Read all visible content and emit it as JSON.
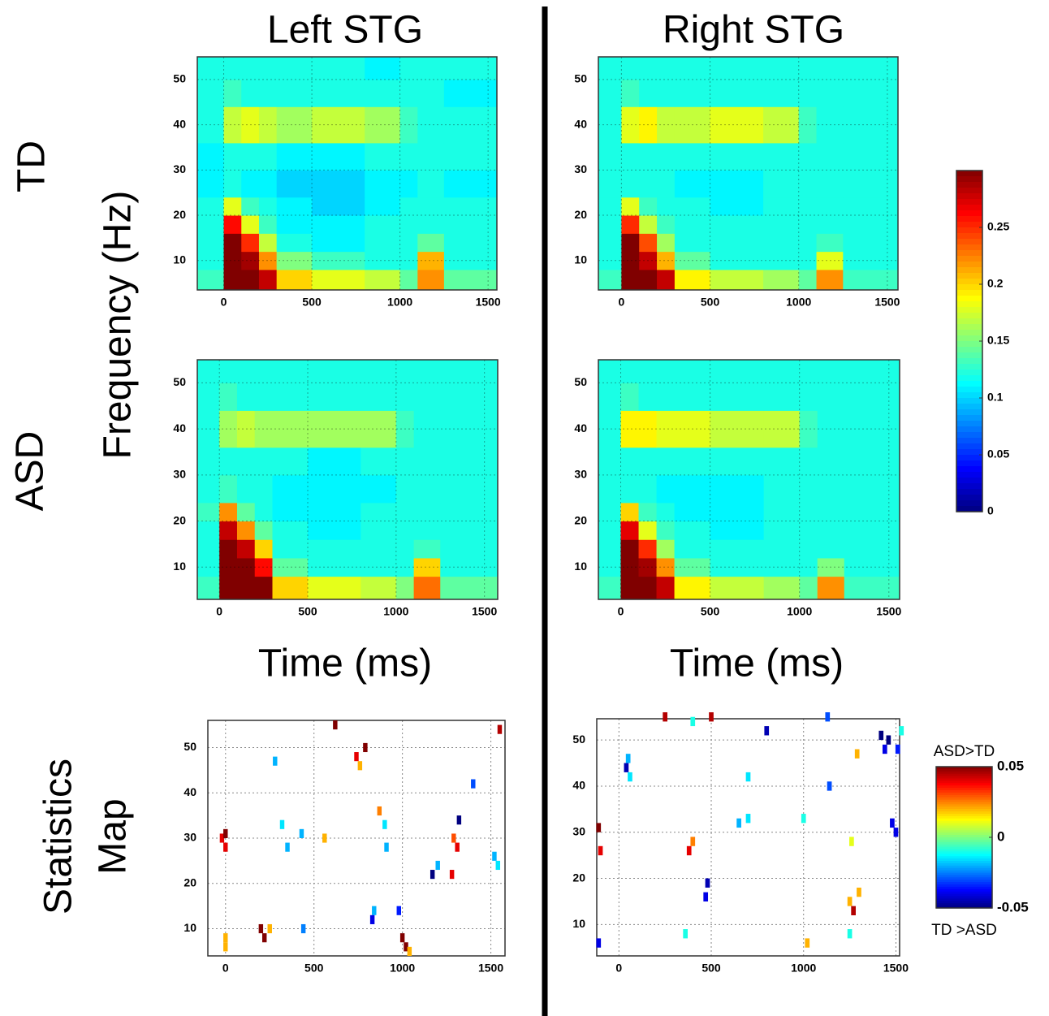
{
  "figure": {
    "column_titles": [
      "Left STG",
      "Right STG"
    ],
    "row_labels": [
      "TD",
      "ASD"
    ],
    "y_label": "Frequency (Hz)",
    "x_label": "Time (ms)",
    "stats_label": [
      "Statistics",
      "Map"
    ]
  },
  "chart_data": [
    {
      "type": "heatmap",
      "xlim": [
        -150,
        1550
      ],
      "ylim": [
        3.5,
        55
      ],
      "xticks": [
        0,
        500,
        1000,
        1500
      ],
      "yticks": [
        10,
        20,
        30,
        40,
        50
      ],
      "grid": true,
      "xbins": [
        -150,
        0,
        100,
        200,
        300,
        500,
        800,
        1000,
        1100,
        1250,
        1550
      ],
      "ybins": [
        3.5,
        8,
        12,
        16,
        20,
        24,
        30,
        36,
        44,
        50,
        55
      ],
      "z": [
        [
          0.13,
          0.3,
          0.3,
          0.28,
          0.2,
          0.18,
          0.17,
          0.14,
          0.22,
          0.14
        ],
        [
          0.12,
          0.3,
          0.29,
          0.22,
          0.15,
          0.13,
          0.12,
          0.12,
          0.21,
          0.12
        ],
        [
          0.12,
          0.3,
          0.25,
          0.17,
          0.12,
          0.11,
          0.12,
          0.12,
          0.14,
          0.12
        ],
        [
          0.12,
          0.26,
          0.18,
          0.13,
          0.11,
          0.11,
          0.12,
          0.12,
          0.12,
          0.12
        ],
        [
          0.12,
          0.18,
          0.13,
          0.12,
          0.11,
          0.1,
          0.11,
          0.12,
          0.12,
          0.12
        ],
        [
          0.11,
          0.12,
          0.11,
          0.11,
          0.1,
          0.1,
          0.11,
          0.11,
          0.12,
          0.11
        ],
        [
          0.11,
          0.12,
          0.12,
          0.12,
          0.11,
          0.11,
          0.12,
          0.12,
          0.12,
          0.12
        ],
        [
          0.12,
          0.17,
          0.18,
          0.17,
          0.16,
          0.17,
          0.16,
          0.13,
          0.12,
          0.12
        ],
        [
          0.12,
          0.13,
          0.12,
          0.12,
          0.12,
          0.12,
          0.12,
          0.12,
          0.12,
          0.11
        ],
        [
          0.12,
          0.12,
          0.12,
          0.12,
          0.12,
          0.12,
          0.11,
          0.12,
          0.12,
          0.12
        ]
      ]
    },
    {
      "type": "heatmap",
      "xlim": [
        -130,
        1560
      ],
      "ylim": [
        3.5,
        55
      ],
      "xticks": [
        0,
        500,
        1000,
        1500
      ],
      "yticks": [
        10,
        20,
        30,
        40,
        50
      ],
      "grid": true,
      "xbins": [
        -130,
        0,
        100,
        200,
        300,
        500,
        800,
        1000,
        1100,
        1250,
        1560
      ],
      "ybins": [
        3.5,
        8,
        12,
        16,
        20,
        24,
        30,
        36,
        44,
        50,
        55
      ],
      "z": [
        [
          0.13,
          0.3,
          0.3,
          0.28,
          0.19,
          0.17,
          0.16,
          0.14,
          0.22,
          0.13
        ],
        [
          0.12,
          0.3,
          0.28,
          0.21,
          0.14,
          0.12,
          0.12,
          0.12,
          0.18,
          0.12
        ],
        [
          0.12,
          0.3,
          0.24,
          0.16,
          0.12,
          0.12,
          0.12,
          0.12,
          0.13,
          0.12
        ],
        [
          0.12,
          0.25,
          0.17,
          0.13,
          0.12,
          0.12,
          0.12,
          0.12,
          0.12,
          0.12
        ],
        [
          0.12,
          0.18,
          0.13,
          0.12,
          0.12,
          0.11,
          0.12,
          0.12,
          0.12,
          0.12
        ],
        [
          0.12,
          0.12,
          0.12,
          0.12,
          0.11,
          0.11,
          0.12,
          0.12,
          0.12,
          0.12
        ],
        [
          0.12,
          0.12,
          0.12,
          0.12,
          0.12,
          0.12,
          0.12,
          0.12,
          0.12,
          0.12
        ],
        [
          0.12,
          0.18,
          0.19,
          0.17,
          0.17,
          0.18,
          0.17,
          0.13,
          0.12,
          0.12
        ],
        [
          0.12,
          0.13,
          0.12,
          0.12,
          0.12,
          0.12,
          0.12,
          0.12,
          0.12,
          0.12
        ],
        [
          0.12,
          0.12,
          0.12,
          0.12,
          0.12,
          0.12,
          0.12,
          0.12,
          0.12,
          0.12
        ]
      ]
    },
    {
      "type": "heatmap",
      "xlim": [
        -125,
        1575
      ],
      "ylim": [
        3,
        55
      ],
      "xticks": [
        0,
        500,
        1000,
        1500
      ],
      "yticks": [
        10,
        20,
        30,
        40,
        50
      ],
      "grid": true,
      "xbins": [
        -125,
        0,
        100,
        200,
        300,
        500,
        800,
        1000,
        1100,
        1250,
        1575
      ],
      "ybins": [
        3,
        8,
        12,
        16,
        20,
        24,
        30,
        36,
        44,
        50,
        55
      ],
      "z": [
        [
          0.13,
          0.3,
          0.3,
          0.3,
          0.2,
          0.18,
          0.17,
          0.15,
          0.23,
          0.14
        ],
        [
          0.12,
          0.3,
          0.3,
          0.26,
          0.14,
          0.12,
          0.12,
          0.12,
          0.2,
          0.12
        ],
        [
          0.12,
          0.3,
          0.28,
          0.2,
          0.12,
          0.12,
          0.12,
          0.12,
          0.13,
          0.12
        ],
        [
          0.12,
          0.28,
          0.22,
          0.14,
          0.12,
          0.11,
          0.12,
          0.12,
          0.12,
          0.12
        ],
        [
          0.13,
          0.22,
          0.14,
          0.12,
          0.11,
          0.11,
          0.12,
          0.12,
          0.12,
          0.12
        ],
        [
          0.12,
          0.13,
          0.12,
          0.12,
          0.11,
          0.11,
          0.11,
          0.12,
          0.12,
          0.12
        ],
        [
          0.12,
          0.12,
          0.12,
          0.12,
          0.12,
          0.11,
          0.12,
          0.12,
          0.12,
          0.12
        ],
        [
          0.12,
          0.16,
          0.17,
          0.16,
          0.16,
          0.16,
          0.16,
          0.13,
          0.12,
          0.12
        ],
        [
          0.12,
          0.13,
          0.12,
          0.12,
          0.12,
          0.12,
          0.12,
          0.12,
          0.12,
          0.12
        ],
        [
          0.12,
          0.12,
          0.12,
          0.12,
          0.12,
          0.12,
          0.12,
          0.12,
          0.12,
          0.12
        ]
      ]
    },
    {
      "type": "heatmap",
      "xlim": [
        -125,
        1560
      ],
      "ylim": [
        3,
        55
      ],
      "xticks": [
        0,
        500,
        1000,
        1500
      ],
      "yticks": [
        10,
        20,
        30,
        40,
        50
      ],
      "grid": true,
      "xbins": [
        -125,
        0,
        100,
        200,
        300,
        500,
        800,
        1000,
        1100,
        1250,
        1560
      ],
      "ybins": [
        3,
        8,
        12,
        16,
        20,
        24,
        30,
        36,
        44,
        50,
        55
      ],
      "z": [
        [
          0.13,
          0.3,
          0.3,
          0.28,
          0.19,
          0.17,
          0.16,
          0.14,
          0.22,
          0.13
        ],
        [
          0.12,
          0.3,
          0.29,
          0.22,
          0.14,
          0.12,
          0.12,
          0.12,
          0.15,
          0.12
        ],
        [
          0.12,
          0.3,
          0.25,
          0.16,
          0.12,
          0.12,
          0.12,
          0.12,
          0.12,
          0.12
        ],
        [
          0.12,
          0.27,
          0.18,
          0.13,
          0.12,
          0.11,
          0.12,
          0.12,
          0.12,
          0.12
        ],
        [
          0.12,
          0.2,
          0.13,
          0.12,
          0.11,
          0.11,
          0.12,
          0.12,
          0.12,
          0.12
        ],
        [
          0.12,
          0.12,
          0.12,
          0.11,
          0.11,
          0.11,
          0.12,
          0.12,
          0.12,
          0.12
        ],
        [
          0.12,
          0.12,
          0.12,
          0.12,
          0.12,
          0.12,
          0.12,
          0.12,
          0.12,
          0.12
        ],
        [
          0.12,
          0.19,
          0.19,
          0.18,
          0.18,
          0.17,
          0.17,
          0.13,
          0.12,
          0.12
        ],
        [
          0.12,
          0.13,
          0.12,
          0.12,
          0.12,
          0.12,
          0.12,
          0.12,
          0.12,
          0.12
        ],
        [
          0.12,
          0.12,
          0.12,
          0.12,
          0.12,
          0.12,
          0.12,
          0.12,
          0.12,
          0.12
        ]
      ]
    },
    {
      "type": "cells",
      "xlim": [
        -100,
        1580
      ],
      "ylim": [
        4,
        56
      ],
      "xticks": [
        0,
        500,
        1000,
        1500
      ],
      "yticks": [
        10,
        20,
        30,
        40,
        50
      ],
      "grid": true,
      "x": [
        -20,
        0,
        0,
        0,
        0,
        200,
        220,
        250,
        280,
        320,
        350,
        430,
        440,
        560,
        620,
        740,
        760,
        790,
        870,
        900,
        910,
        840,
        830,
        980,
        1000,
        1020,
        1040,
        1170,
        1200,
        1280,
        1290,
        1310,
        1320,
        1400,
        1520,
        1540,
        1550
      ],
      "y": [
        30,
        31,
        28,
        8,
        6,
        10,
        8,
        10,
        47,
        33,
        28,
        31,
        10,
        30,
        55,
        48,
        46,
        50,
        36,
        33,
        28,
        14,
        12,
        14,
        8,
        6,
        5,
        22,
        24,
        22,
        30,
        28,
        34,
        42,
        26,
        24,
        54
      ],
      "values": [
        0.04,
        0.05,
        0.04,
        0.02,
        0.02,
        0.05,
        0.05,
        0.02,
        -0.02,
        -0.015,
        -0.02,
        -0.02,
        -0.025,
        0.02,
        0.05,
        0.04,
        0.02,
        0.05,
        0.025,
        -0.015,
        -0.02,
        -0.02,
        -0.04,
        -0.035,
        0.05,
        0.05,
        0.02,
        -0.05,
        -0.02,
        0.04,
        0.03,
        0.04,
        -0.05,
        -0.03,
        -0.02,
        -0.015,
        0.045
      ]
    },
    {
      "type": "cells",
      "xlim": [
        -120,
        1520
      ],
      "ylim": [
        3.2,
        54.6
      ],
      "xticks": [
        0,
        500,
        1000,
        1500
      ],
      "yticks": [
        10,
        20,
        30,
        40,
        50
      ],
      "grid": true,
      "x": [
        -110,
        -100,
        -110,
        40,
        50,
        60,
        250,
        380,
        400,
        400,
        470,
        480,
        500,
        650,
        700,
        800,
        700,
        1020,
        1000,
        1130,
        1140,
        1250,
        1270,
        1290,
        1300,
        1260,
        1250,
        1420,
        1440,
        1460,
        1480,
        1500,
        1510,
        1530,
        360
      ],
      "y": [
        31,
        26,
        6,
        44,
        46,
        42,
        55,
        26,
        28,
        54,
        16,
        19,
        55,
        32,
        33,
        52,
        42,
        6,
        33,
        55,
        40,
        15,
        13,
        47,
        17,
        28,
        8,
        51,
        48,
        50,
        32,
        30,
        48,
        52,
        8
      ],
      "values": [
        0.05,
        0.04,
        -0.04,
        -0.045,
        -0.02,
        -0.015,
        0.045,
        0.04,
        0.025,
        -0.01,
        -0.04,
        -0.045,
        0.045,
        -0.02,
        -0.015,
        -0.045,
        -0.015,
        0.02,
        -0.01,
        -0.03,
        -0.03,
        0.02,
        0.045,
        0.02,
        0.02,
        0.01,
        -0.01,
        -0.05,
        -0.04,
        -0.05,
        -0.04,
        -0.04,
        -0.035,
        -0.01,
        -0.01
      ]
    },
    {
      "type": "colorbar",
      "colormap": "jet",
      "ylim": [
        0,
        0.3
      ],
      "yticks": [
        0,
        0.05,
        0.1,
        0.15,
        0.2,
        0.25
      ]
    },
    {
      "type": "colorbar",
      "colormap": "jet",
      "ylim": [
        -0.05,
        0.05
      ],
      "yticks": [
        -0.05,
        0,
        0.05
      ],
      "top_label": "ASD>TD",
      "bottom_label": "TD >ASD"
    }
  ]
}
